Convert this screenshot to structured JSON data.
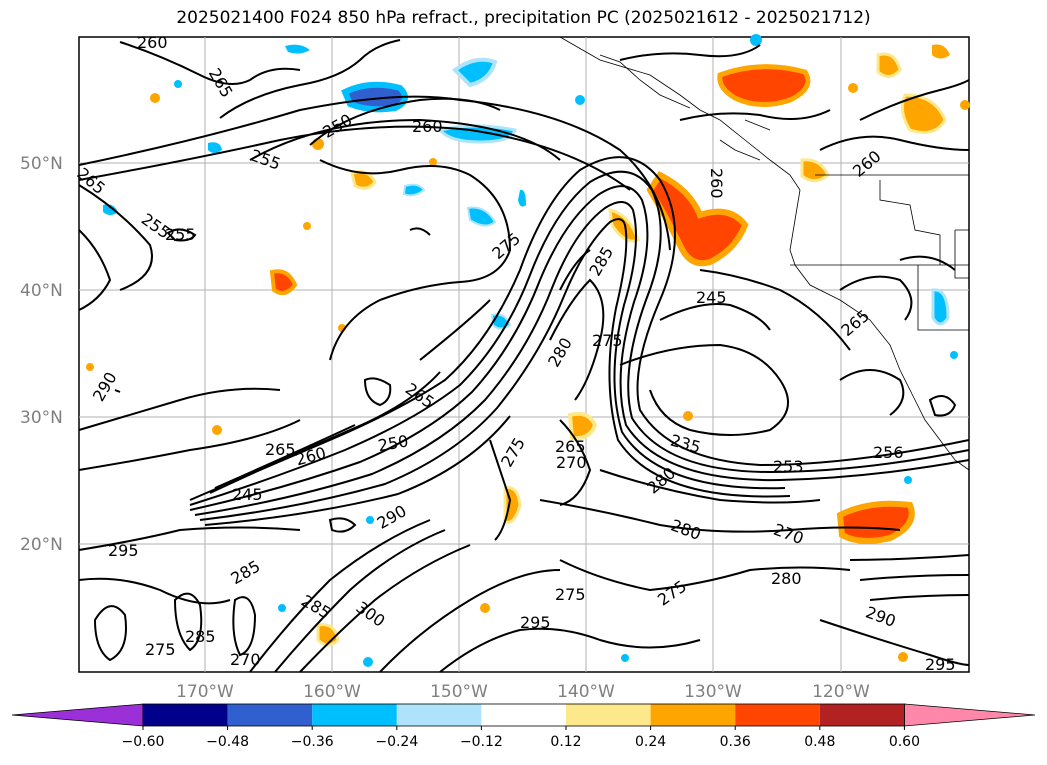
{
  "title": "2025021400 F024 850 hPa refract., precipitation PC (2025021612 - 2025021712)",
  "lat_labels": [
    "50°N",
    "40°N",
    "30°N",
    "20°N"
  ],
  "lon_labels": [
    "170°W",
    "160°W",
    "150°W",
    "140°W",
    "130°W",
    "120°W"
  ],
  "contour_labels": [
    "260",
    "265",
    "250",
    "260",
    "255",
    "265",
    "255",
    "255",
    "275",
    "285",
    "265",
    "245",
    "260",
    "260",
    "265",
    "275",
    "280",
    "265",
    "260",
    "250",
    "245",
    "290",
    "275",
    "265",
    "270",
    "280",
    "235",
    "253",
    "256",
    "280",
    "270",
    "280",
    "275",
    "275",
    "295",
    "300",
    "285",
    "285",
    "275",
    "295",
    "290",
    "290",
    "295",
    "270",
    "285"
  ],
  "colorbar": {
    "ticks": [
      "−0.60",
      "−0.48",
      "−0.36",
      "−0.24",
      "−0.12",
      "0.12",
      "0.24",
      "0.36",
      "0.48",
      "0.60"
    ],
    "colors": [
      "#9b30d9",
      "#00008b",
      "#3060d0",
      "#00bfff",
      "#aee4fb",
      "#ffffff",
      "#fde98c",
      "#ffa500",
      "#ff4500",
      "#b22222",
      "#ff88aa"
    ]
  }
}
